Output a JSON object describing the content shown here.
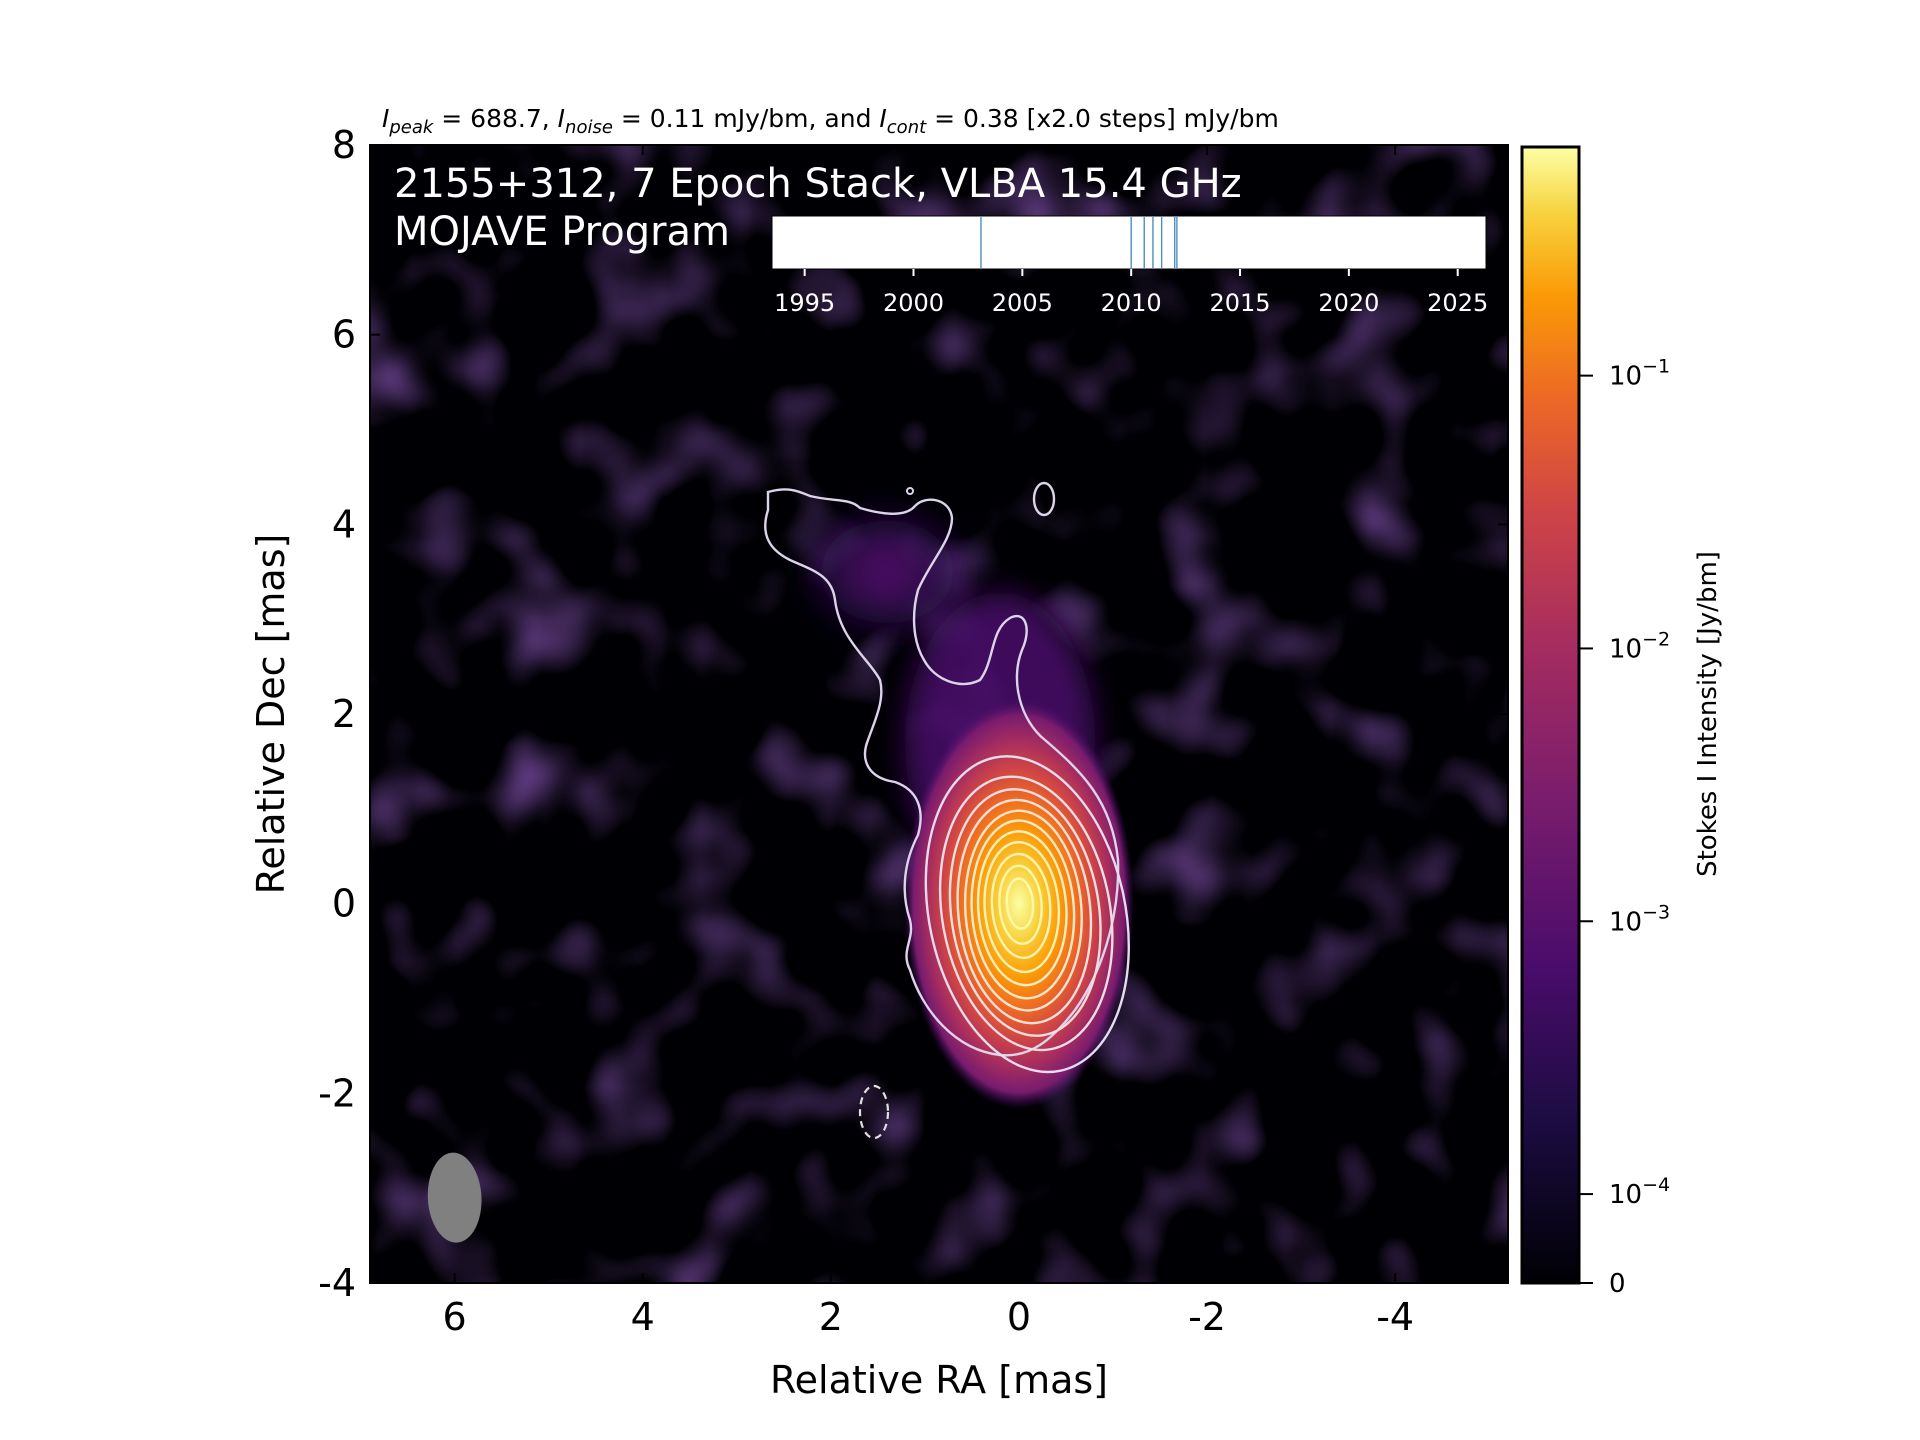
{
  "chart_data": {
    "type": "heatmap",
    "header": {
      "peak_sym": "I",
      "peak_sub": "peak",
      "peak_val": " = 688.7, ",
      "noise_sym": "I",
      "noise_sub": "noise",
      "noise_val": " = 0.11 mJy/bm, and ",
      "cont_sym": "I",
      "cont_sub": "cont",
      "cont_val": " = 0.38 [x2.0 steps] mJy/bm"
    },
    "title_line1": "2155+312, 7 Epoch Stack, VLBA 15.4 GHz",
    "title_line2": "MOJAVE Program",
    "xlabel": "Relative RA [mas]",
    "ylabel": "Relative Dec [mas]",
    "xlim": [
      6.9,
      -5.2
    ],
    "ylim": [
      -4,
      8
    ],
    "x_axis_inverted": true,
    "x_ticks": [
      6,
      4,
      2,
      0,
      -2,
      -4
    ],
    "x_tick_labels": [
      "6",
      "4",
      "2",
      "0",
      "-2",
      "-4"
    ],
    "y_ticks": [
      -4,
      -2,
      0,
      2,
      4,
      6,
      8
    ],
    "y_tick_labels": [
      "-4",
      "-2",
      "0",
      "2",
      "4",
      "6",
      "8"
    ],
    "colormap": "inferno",
    "colorbar": {
      "label": "Stokes I Intensity [Jy/bm]",
      "scale": "log",
      "range": [
        0,
        0.6887
      ],
      "ticks": [
        0,
        0.0001,
        0.001,
        0.01,
        0.1
      ],
      "tick_labels": [
        {
          "base": "0",
          "exp": ""
        },
        {
          "base": "10",
          "exp": "−4"
        },
        {
          "base": "10",
          "exp": "−3"
        },
        {
          "base": "10",
          "exp": "−2"
        },
        {
          "base": "10",
          "exp": "−1"
        }
      ]
    },
    "contour_levels_mJy": [
      0.38,
      0.76,
      1.52,
      3.04,
      6.08,
      12.16,
      24.32,
      48.64,
      97.28,
      194.56,
      389.12
    ],
    "negative_contour_level_mJy": -0.38,
    "source_components": [
      {
        "ra": 0.0,
        "dec": 0.0,
        "peak_Jy": 0.6887
      },
      {
        "ra": 0.2,
        "dec": 1.7,
        "peak_Jy": 0.004
      },
      {
        "ra": 1.4,
        "dec": 3.5,
        "peak_Jy": 0.0012
      }
    ],
    "beam": {
      "ra": 6.0,
      "dec": -3.1,
      "major_mas": 0.95,
      "minor_mas": 0.57,
      "pa_deg": -3
    },
    "epoch_inset": {
      "xlim": [
        1993.5,
        2026.3
      ],
      "ticks": [
        1995,
        2000,
        2005,
        2010,
        2015,
        2020,
        2025
      ],
      "tick_labels": [
        "1995",
        "2000",
        "2005",
        "2010",
        "2015",
        "2020",
        "2025"
      ],
      "epochs": [
        2003.1,
        2010.0,
        2010.6,
        2011.0,
        2011.4,
        2012.0,
        2012.1
      ],
      "epoch_color": "#4f8fbf"
    }
  }
}
